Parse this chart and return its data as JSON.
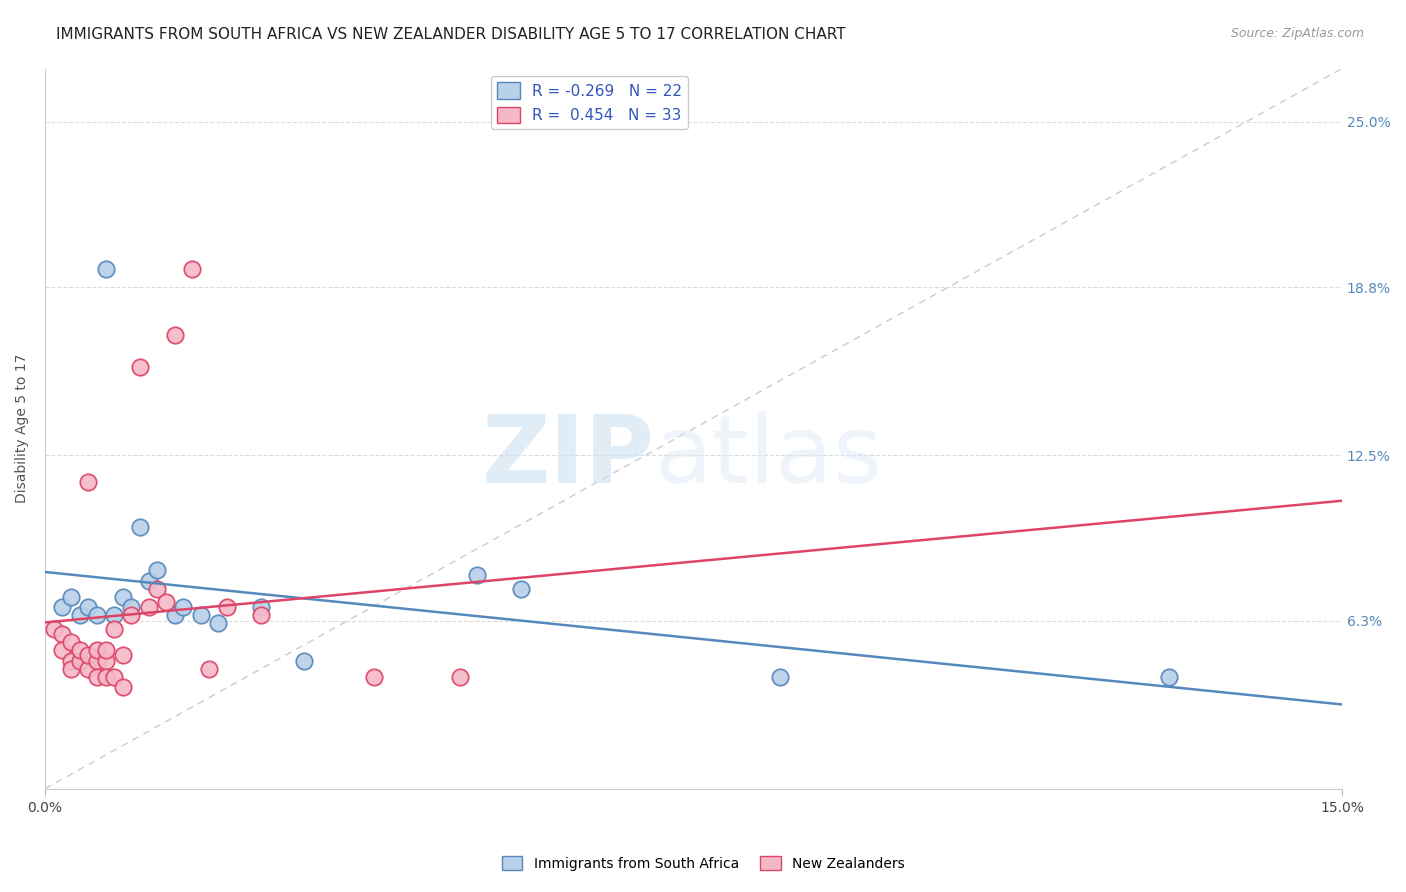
{
  "title": "IMMIGRANTS FROM SOUTH AFRICA VS NEW ZEALANDER DISABILITY AGE 5 TO 17 CORRELATION CHART",
  "source": "Source: ZipAtlas.com",
  "ylabel": "Disability Age 5 to 17",
  "xlim": [
    0.0,
    0.15
  ],
  "ylim": [
    0.0,
    0.27
  ],
  "R_blue": -0.269,
  "N_blue": 22,
  "R_pink": 0.454,
  "N_pink": 33,
  "blue_color": "#b8d0e8",
  "pink_color": "#f5b8c8",
  "blue_line_color": "#5588bb",
  "pink_line_color": "#dd4466",
  "diag_line_color": "#cccccc",
  "legend_R_color": "#3355bb",
  "blue_scatter_x": [
    0.002,
    0.003,
    0.004,
    0.005,
    0.006,
    0.007,
    0.008,
    0.009,
    0.01,
    0.011,
    0.012,
    0.013,
    0.015,
    0.016,
    0.018,
    0.02,
    0.025,
    0.03,
    0.05,
    0.055,
    0.085,
    0.13
  ],
  "blue_scatter_y": [
    0.068,
    0.072,
    0.065,
    0.068,
    0.065,
    0.195,
    0.065,
    0.072,
    0.068,
    0.098,
    0.078,
    0.082,
    0.065,
    0.068,
    0.065,
    0.062,
    0.068,
    0.048,
    0.08,
    0.075,
    0.042,
    0.042
  ],
  "pink_scatter_x": [
    0.001,
    0.002,
    0.002,
    0.003,
    0.003,
    0.003,
    0.004,
    0.004,
    0.005,
    0.005,
    0.005,
    0.006,
    0.006,
    0.006,
    0.007,
    0.007,
    0.007,
    0.008,
    0.008,
    0.009,
    0.009,
    0.01,
    0.011,
    0.012,
    0.013,
    0.014,
    0.015,
    0.017,
    0.019,
    0.021,
    0.025,
    0.038,
    0.048
  ],
  "pink_scatter_y": [
    0.06,
    0.058,
    0.052,
    0.055,
    0.048,
    0.045,
    0.048,
    0.052,
    0.045,
    0.05,
    0.115,
    0.048,
    0.052,
    0.042,
    0.048,
    0.052,
    0.042,
    0.042,
    0.06,
    0.038,
    0.05,
    0.065,
    0.158,
    0.068,
    0.075,
    0.07,
    0.17,
    0.195,
    0.045,
    0.068,
    0.065,
    0.042,
    0.042
  ],
  "watermark_zip": "ZIP",
  "watermark_atlas": "atlas",
  "title_fontsize": 11,
  "axis_fontsize": 10,
  "tick_fontsize": 10
}
